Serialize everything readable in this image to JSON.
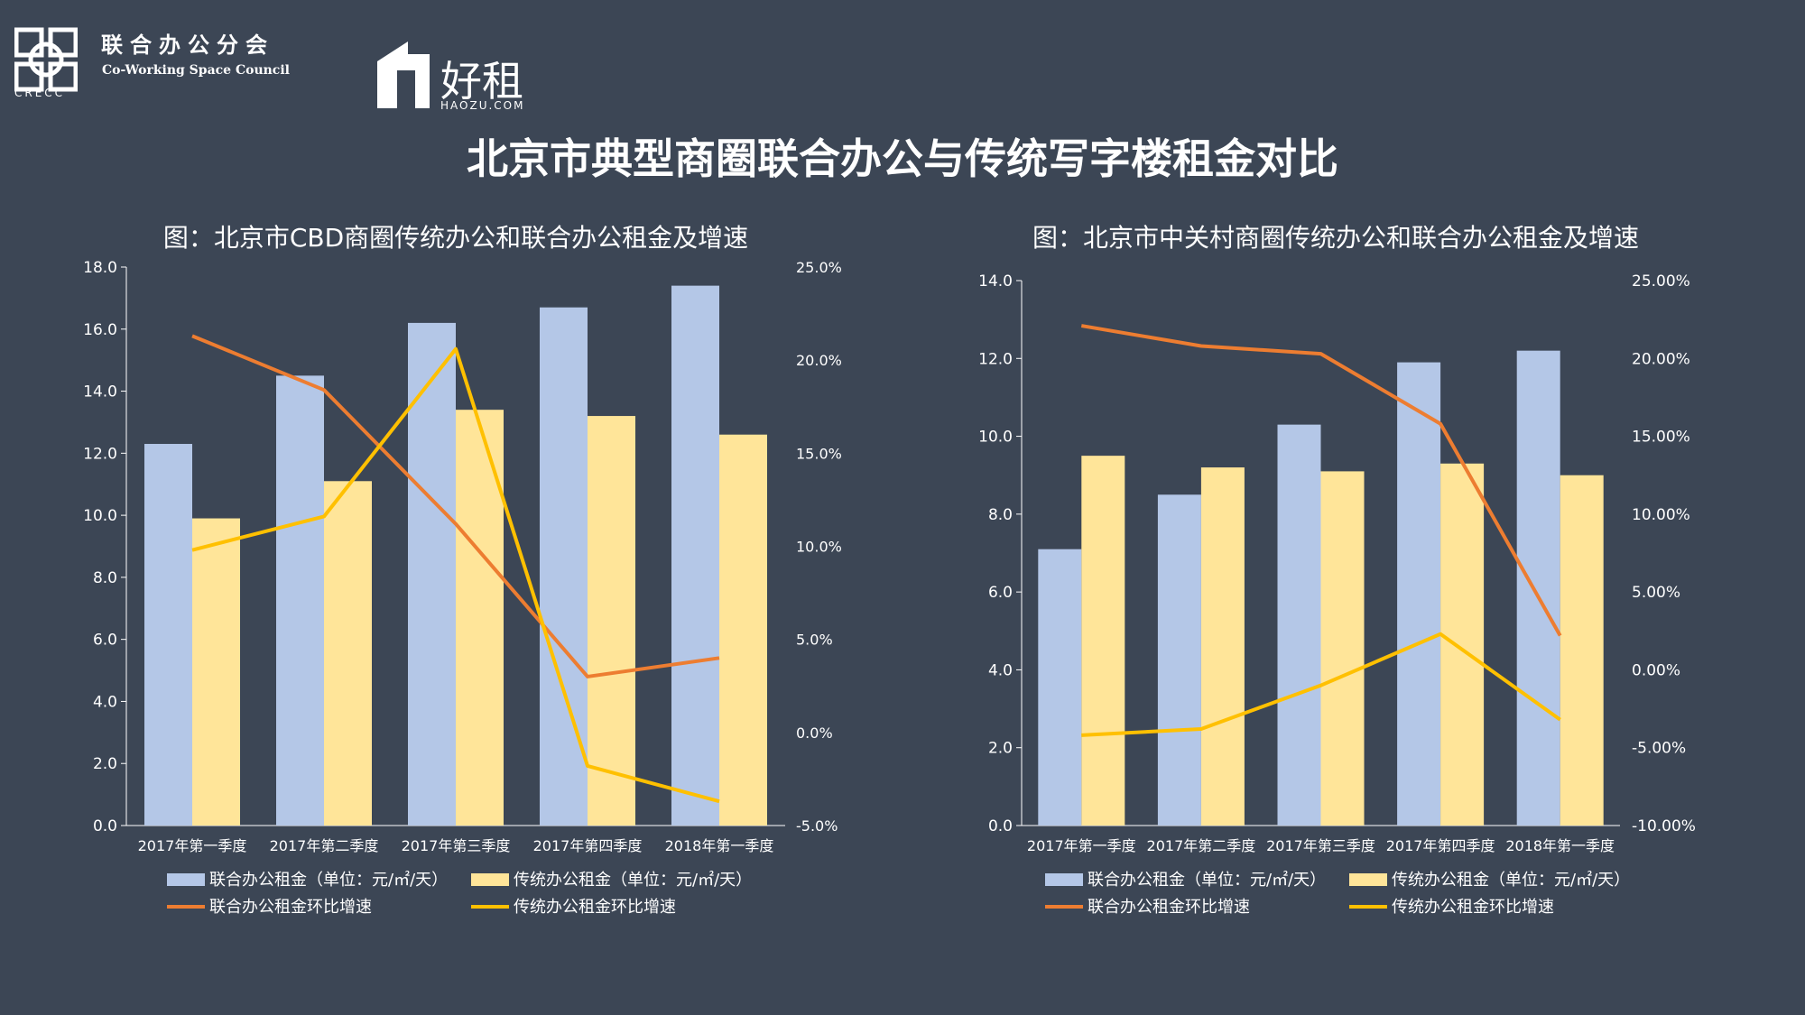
{
  "header": {
    "crecc_abbr": "CRECC",
    "council_cn": "联合办公分会",
    "council_en": "Co-Working Space Council",
    "haozu_cn": "好租",
    "haozu_en": "HAOZU.COM"
  },
  "page_title": "北京市典型商圈联合办公与传统写字楼租金对比",
  "colors": {
    "background": "#3c4655",
    "cowork_bar": "#b4c7e7",
    "traditional_bar": "#ffe599",
    "cowork_line": "#ed7d31",
    "traditional_line": "#ffc000"
  },
  "chart_data": [
    {
      "type": "bar",
      "title": "图：北京市CBD商圈传统办公和联合办公租金及增速",
      "categories": [
        "2017年第一季度",
        "2017年第二季度",
        "2017年第三季度",
        "2017年第四季度",
        "2018年第一季度"
      ],
      "ylim": [
        0,
        18
      ],
      "yticks": [
        "0.0",
        "2.0",
        "4.0",
        "6.0",
        "8.0",
        "10.0",
        "12.0",
        "14.0",
        "16.0",
        "18.0"
      ],
      "y2lim": [
        -5,
        25
      ],
      "y2ticks": [
        "-5.0%",
        "0.0%",
        "5.0%",
        "10.0%",
        "15.0%",
        "20.0%",
        "25.0%"
      ],
      "series": [
        {
          "name": "联合办公租金（单位：元/㎡/天）",
          "kind": "bar",
          "axis": "left",
          "values": [
            12.3,
            14.5,
            16.2,
            16.7,
            17.4
          ]
        },
        {
          "name": "传统办公租金（单位：元/㎡/天）",
          "kind": "bar",
          "axis": "left",
          "values": [
            9.9,
            11.1,
            13.4,
            13.2,
            12.6
          ]
        },
        {
          "name": "联合办公租金环比增速",
          "kind": "line",
          "axis": "right",
          "values": [
            21.3,
            18.4,
            11.2,
            3.0,
            4.0
          ]
        },
        {
          "name": "传统办公租金环比增速",
          "kind": "line",
          "axis": "right",
          "values": [
            9.8,
            11.6,
            20.6,
            -1.8,
            -3.7
          ]
        }
      ]
    },
    {
      "type": "bar",
      "title": "图：北京市中关村商圈传统办公和联合办公租金及增速",
      "categories": [
        "2017年第一季度",
        "2017年第二季度",
        "2017年第三季度",
        "2017年第四季度",
        "2018年第一季度"
      ],
      "ylim": [
        0,
        14
      ],
      "yticks": [
        "0.0",
        "2.0",
        "4.0",
        "6.0",
        "8.0",
        "10.0",
        "12.0",
        "14.0"
      ],
      "y2lim": [
        -10,
        25
      ],
      "y2ticks": [
        "-10.00%",
        "-5.00%",
        "0.00%",
        "5.00%",
        "10.00%",
        "15.00%",
        "20.00%",
        "25.00%"
      ],
      "series": [
        {
          "name": "联合办公租金（单位：元/㎡/天）",
          "kind": "bar",
          "axis": "left",
          "values": [
            7.1,
            8.5,
            10.3,
            11.9,
            12.2
          ]
        },
        {
          "name": "传统办公租金（单位：元/㎡/天）",
          "kind": "bar",
          "axis": "left",
          "values": [
            9.5,
            9.2,
            9.1,
            9.3,
            9.0
          ]
        },
        {
          "name": "联合办公租金环比增速",
          "kind": "line",
          "axis": "right",
          "values": [
            22.1,
            20.8,
            20.3,
            15.8,
            2.2
          ]
        },
        {
          "name": "传统办公租金环比增速",
          "kind": "line",
          "axis": "right",
          "values": [
            -4.2,
            -3.8,
            -1.0,
            2.3,
            -3.2
          ]
        }
      ]
    }
  ]
}
